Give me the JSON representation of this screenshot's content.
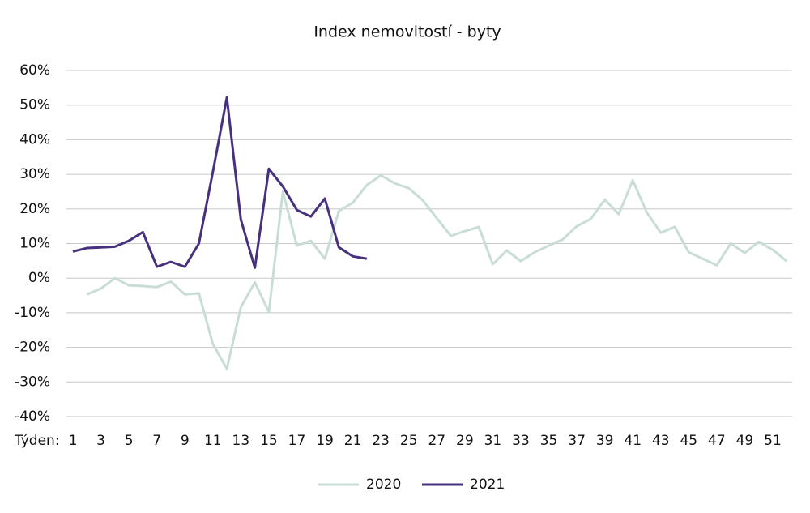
{
  "chart_data": {
    "type": "line",
    "title": "Index nemovitostí - byty",
    "xlabel": "Týden:",
    "categories": [
      "1",
      null,
      "3",
      null,
      "5",
      null,
      "7",
      null,
      "9",
      null,
      "11",
      null,
      "13",
      null,
      "15",
      null,
      "17",
      null,
      "19",
      null,
      "21",
      null,
      "23",
      null,
      "25",
      null,
      "27",
      null,
      "29",
      null,
      "31",
      null,
      "33",
      null,
      "35",
      null,
      "37",
      null,
      "39",
      null,
      "41",
      null,
      "43",
      null,
      "45",
      null,
      "47",
      null,
      "49",
      null,
      "51",
      null
    ],
    "series": [
      {
        "name": "2020",
        "color": "#c8ddd6",
        "values": [
          null,
          -4.7,
          -3,
          0,
          -2.1,
          -2.3,
          -2.6,
          -1,
          -4.7,
          -4.4,
          -19,
          -26.2,
          -8.4,
          -1.2,
          -9.8,
          25,
          9.4,
          10.8,
          5.6,
          19.4,
          21.8,
          26.9,
          29.7,
          27.4,
          26,
          22.5,
          17.3,
          12.2,
          13.6,
          14.8,
          4,
          8,
          4.9,
          7.5,
          9.4,
          11.2,
          15,
          17.1,
          22.7,
          18.5,
          28.3,
          19,
          13.1,
          14.8,
          7.5,
          5.6,
          3.7,
          10,
          7.3,
          10.5,
          8.2,
          4.9
        ]
      },
      {
        "name": "2021",
        "color": "#47317f",
        "values": [
          7.7,
          8.7,
          8.9,
          9.1,
          10.8,
          13.3,
          3.3,
          4.7,
          3.3,
          10,
          30.7,
          52.2,
          16.9,
          3,
          31.6,
          26.5,
          19.7,
          17.8,
          23,
          8.9,
          6.3,
          5.6,
          null,
          null,
          null,
          null,
          null,
          null,
          null,
          null,
          null,
          null,
          null,
          null,
          null,
          null,
          null,
          null,
          null,
          null,
          null,
          null,
          null,
          null,
          null,
          null,
          null,
          null,
          null,
          null,
          null,
          null
        ]
      }
    ],
    "ylim": [
      -40,
      60
    ],
    "yticks": [
      {
        "value": -40,
        "label": "-40%"
      },
      {
        "value": -30,
        "label": "-30%"
      },
      {
        "value": -20,
        "label": "-20%"
      },
      {
        "value": -10,
        "label": "-10%"
      },
      {
        "value": 0,
        "label": "0%"
      },
      {
        "value": 10,
        "label": "10%"
      },
      {
        "value": 20,
        "label": "20%"
      },
      {
        "value": 30,
        "label": "30%"
      },
      {
        "value": 40,
        "label": "40%"
      },
      {
        "value": 50,
        "label": "50%"
      },
      {
        "value": 60,
        "label": "60%"
      }
    ],
    "grid": true,
    "legend": "bottom"
  }
}
